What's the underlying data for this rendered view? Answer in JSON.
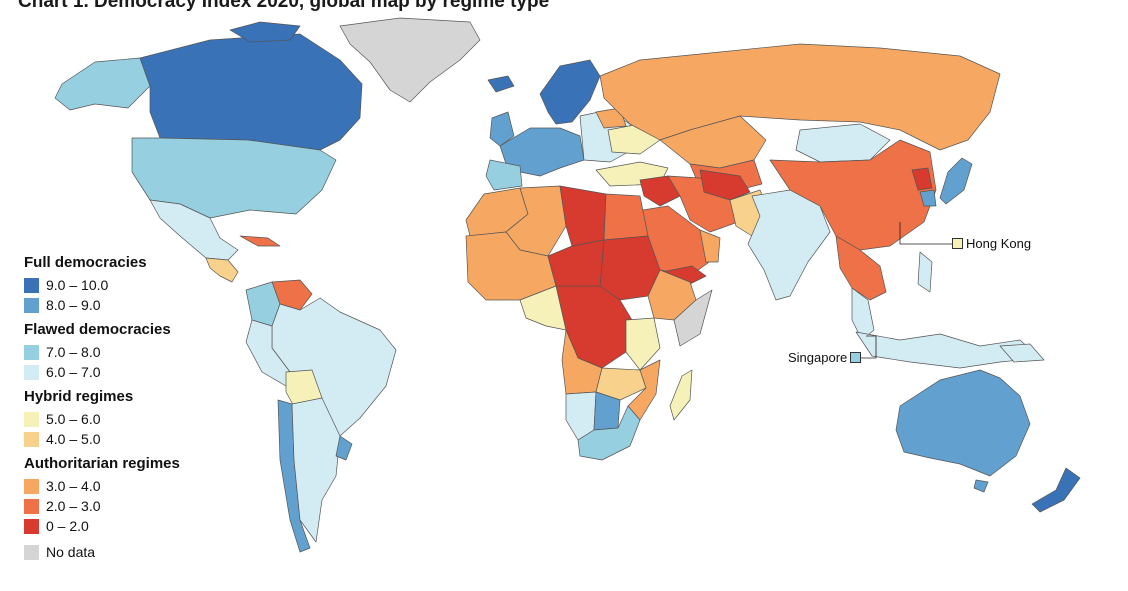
{
  "title": "Chart 1. Democracy Index 2020, global map by regime type",
  "legend": [
    {
      "heading": "Full democracies",
      "items": [
        {
          "label": "9.0 – 10.0",
          "color": "#3a72b8"
        },
        {
          "label": "8.0 – 9.0",
          "color": "#62a1cf"
        }
      ]
    },
    {
      "heading": "Flawed democracies",
      "items": [
        {
          "label": "7.0 – 8.0",
          "color": "#95cfe0"
        },
        {
          "label": "6.0 – 7.0",
          "color": "#d3ebf2"
        }
      ]
    },
    {
      "heading": "Hybrid regimes",
      "items": [
        {
          "label": "5.0 – 6.0",
          "color": "#f6f0b9"
        },
        {
          "label": "4.0 – 5.0",
          "color": "#f8d28c"
        }
      ]
    },
    {
      "heading": "Authoritarian regimes",
      "items": [
        {
          "label": "3.0 – 4.0",
          "color": "#f6a862"
        },
        {
          "label": "2.0 – 3.0",
          "color": "#ee7147"
        },
        {
          "label": "0 – 2.0",
          "color": "#d73a2e"
        }
      ]
    },
    {
      "heading": "",
      "items": [
        {
          "label": "No data",
          "color": "#d5d5d5"
        }
      ]
    }
  ],
  "callouts": {
    "hong_kong": {
      "label": "Hong Kong",
      "color": "#f6f0b9"
    },
    "singapore": {
      "label": "Singapore",
      "color": "#95cfe0"
    }
  }
}
